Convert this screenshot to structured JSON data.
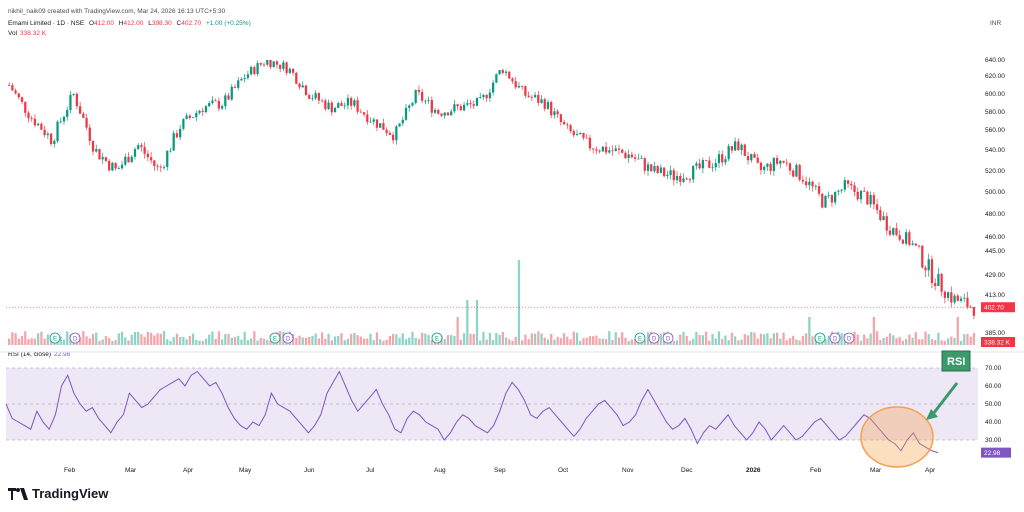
{
  "header": {
    "attribution": "nikhil_naik09 created with TradingView.com, Mar 24, 2026 16:13 UTC+5:30",
    "symbol": "Emami Limited · 1D · NSE",
    "open_label": "O",
    "open": "412.00",
    "high_label": "H",
    "high": "412.00",
    "low_label": "L",
    "low": "398.30",
    "close_label": "C",
    "close": "402.70",
    "change": "+1.00 (+0.25%)",
    "vol_label": "Vol",
    "vol": "338.32 K",
    "currency": "INR"
  },
  "rsi_header": {
    "label": "RSI (14, close)",
    "value": "22.98"
  },
  "annotation": {
    "label": "RSI"
  },
  "branding": {
    "name": "TradingView"
  },
  "colors": {
    "up": "#089981",
    "down": "#f23645",
    "up_vol": "#8dd3c6",
    "down_vol": "#f7a3aa",
    "rsi_line": "#7e57c2",
    "rsi_band": "#ede7f6",
    "annotation_green": "#3a9a6c",
    "annotation_circle": "#f6a04d"
  },
  "chart_data": [
    {
      "type": "candlestick",
      "title": "Emami Limited · 1D · NSE",
      "ylabel": "INR",
      "y_ticks": [
        385,
        397,
        413,
        429,
        445,
        460,
        480,
        500,
        520,
        540,
        560,
        580,
        600,
        620,
        640
      ],
      "last_price_label": "402.70",
      "volume_label": "338.32 K",
      "x_ticks": [
        "Feb",
        "Mar",
        "Apr",
        "May",
        "Jun",
        "Jul",
        "Aug",
        "Sep",
        "Oct",
        "Nov",
        "Dec",
        "2026",
        "Feb",
        "Mar",
        "Apr"
      ],
      "close_path": [
        {
          "m": "Jan",
          "v": 610
        },
        {
          "m": "Jan",
          "v": 575
        },
        {
          "m": "Jan",
          "v": 550
        },
        {
          "m": "Feb",
          "v": 600
        },
        {
          "m": "Feb",
          "v": 540
        },
        {
          "m": "Feb",
          "v": 520
        },
        {
          "m": "Mar",
          "v": 545
        },
        {
          "m": "Mar",
          "v": 520
        },
        {
          "m": "Mar",
          "v": 565
        },
        {
          "m": "Apr",
          "v": 585
        },
        {
          "m": "Apr",
          "v": 590
        },
        {
          "m": "Apr",
          "v": 620
        },
        {
          "m": "May",
          "v": 640
        },
        {
          "m": "May",
          "v": 630
        },
        {
          "m": "May",
          "v": 600
        },
        {
          "m": "Jun",
          "v": 585
        },
        {
          "m": "Jun",
          "v": 590
        },
        {
          "m": "Jun",
          "v": 570
        },
        {
          "m": "Jul",
          "v": 555
        },
        {
          "m": "Jul",
          "v": 600
        },
        {
          "m": "Jul",
          "v": 580
        },
        {
          "m": "Aug",
          "v": 585
        },
        {
          "m": "Aug",
          "v": 590
        },
        {
          "m": "Aug",
          "v": 630
        },
        {
          "m": "Sep",
          "v": 600
        },
        {
          "m": "Sep",
          "v": 590
        },
        {
          "m": "Sep",
          "v": 560
        },
        {
          "m": "Oct",
          "v": 545
        },
        {
          "m": "Oct",
          "v": 540
        },
        {
          "m": "Oct",
          "v": 535
        },
        {
          "m": "Nov",
          "v": 520
        },
        {
          "m": "Nov",
          "v": 515
        },
        {
          "m": "Nov",
          "v": 520
        },
        {
          "m": "Dec",
          "v": 530
        },
        {
          "m": "Dec",
          "v": 545
        },
        {
          "m": "Dec",
          "v": 520
        },
        {
          "m": "2026",
          "v": 530
        },
        {
          "m": "2026",
          "v": 515
        },
        {
          "m": "2026",
          "v": 490
        },
        {
          "m": "Feb",
          "v": 505
        },
        {
          "m": "Feb",
          "v": 495
        },
        {
          "m": "Feb",
          "v": 470
        },
        {
          "m": "Mar",
          "v": 455
        },
        {
          "m": "Mar",
          "v": 430
        },
        {
          "m": "Mar",
          "v": 410
        },
        {
          "m": "Mar",
          "v": 402.7
        }
      ],
      "volume_spikes": [
        {
          "m": "Aug",
          "v": "high"
        },
        {
          "m": "Aug",
          "v": "very high"
        },
        {
          "m": "Feb",
          "v": "high"
        },
        {
          "m": "Mar",
          "v": "high"
        }
      ],
      "event_markers": [
        {
          "m": "Jan",
          "labels": [
            "E",
            "D"
          ]
        },
        {
          "m": "May",
          "labels": [
            "E",
            "D"
          ]
        },
        {
          "m": "Aug",
          "labels": [
            "E"
          ]
        },
        {
          "m": "Nov",
          "labels": [
            "E",
            "D",
            "D"
          ]
        },
        {
          "m": "Feb",
          "labels": [
            "E",
            "D",
            "D"
          ]
        }
      ]
    },
    {
      "type": "line",
      "title": "RSI (14, close)",
      "y_ticks": [
        20,
        30,
        40,
        50,
        60,
        70
      ],
      "bands": {
        "upper": 70,
        "middle": 50,
        "lower": 30
      },
      "last_value": "22.98",
      "values": [
        50,
        42,
        40,
        38,
        36,
        46,
        40,
        36,
        44,
        60,
        66,
        56,
        50,
        46,
        48,
        42,
        38,
        34,
        40,
        44,
        56,
        52,
        48,
        50,
        54,
        58,
        60,
        62,
        64,
        60,
        66,
        68,
        64,
        60,
        62,
        56,
        48,
        42,
        38,
        36,
        40,
        38,
        44,
        56,
        50,
        48,
        46,
        42,
        38,
        34,
        38,
        44,
        56,
        62,
        68,
        60,
        52,
        46,
        50,
        54,
        58,
        50,
        44,
        36,
        34,
        42,
        46,
        44,
        40,
        38,
        36,
        30,
        34,
        40,
        44,
        42,
        38,
        36,
        34,
        38,
        46,
        56,
        62,
        58,
        52,
        44,
        42,
        46,
        48,
        44,
        40,
        36,
        32,
        36,
        42,
        46,
        50,
        52,
        48,
        44,
        38,
        40,
        44,
        52,
        58,
        52,
        46,
        40,
        36,
        38,
        42,
        36,
        28,
        34,
        38,
        36,
        40,
        44,
        38,
        34,
        30,
        34,
        40,
        36,
        30,
        34,
        38,
        34,
        30,
        32,
        36,
        40,
        42,
        38,
        34,
        30,
        32,
        36,
        40,
        44,
        42,
        38,
        34,
        30,
        28,
        24,
        30,
        34,
        28,
        26,
        24,
        22.98
      ]
    }
  ]
}
